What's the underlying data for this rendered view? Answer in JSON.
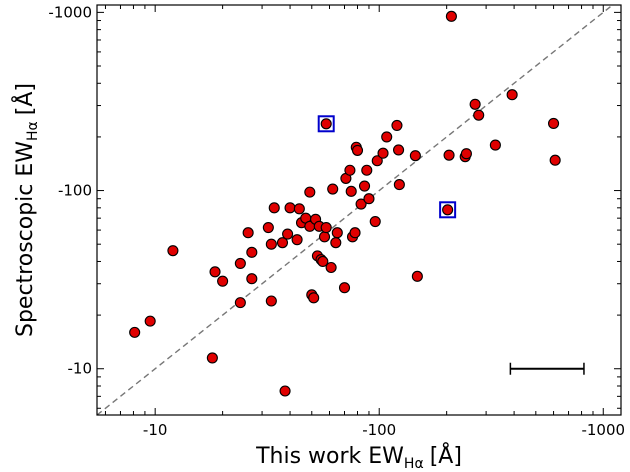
{
  "chart_data": {
    "type": "scatter",
    "xlabel": "This work EW",
    "ylabel": "Spectroscopic EW",
    "label_subscript": "Hα",
    "label_unit": "[Å]",
    "xscale": "log",
    "yscale": "log",
    "xlim": [
      -5.5,
      -1200
    ],
    "ylim": [
      -5.5,
      -1100
    ],
    "xticks": [
      -10,
      -100,
      -1000
    ],
    "xtick_labels": [
      "-10",
      "-100",
      "-1000"
    ],
    "yticks": [
      -10,
      -100,
      -1000
    ],
    "ytick_labels": [
      "-10",
      "-100",
      "-1000"
    ],
    "grid": false,
    "one_to_one_line": true,
    "colors": {
      "marker": "#e00000",
      "marker_edge": "#000000",
      "highlight_box": "#0000cc",
      "reference_line": "#777777"
    },
    "error_bar": {
      "x_range": [
        -385,
        -820
      ],
      "y": -10
    },
    "points": [
      {
        "x": -210,
        "y": -950
      },
      {
        "x": -8.1,
        "y": -16
      },
      {
        "x": -9.5,
        "y": -18.5
      },
      {
        "x": -12,
        "y": -46
      },
      {
        "x": -18,
        "y": -11.5
      },
      {
        "x": -18.5,
        "y": -35
      },
      {
        "x": -20,
        "y": -31
      },
      {
        "x": -24,
        "y": -39
      },
      {
        "x": -24,
        "y": -23.5
      },
      {
        "x": -26,
        "y": -58
      },
      {
        "x": -27,
        "y": -45
      },
      {
        "x": -27,
        "y": -32
      },
      {
        "x": -32,
        "y": -62
      },
      {
        "x": -33,
        "y": -50
      },
      {
        "x": -33,
        "y": -24
      },
      {
        "x": -34,
        "y": -80
      },
      {
        "x": -37,
        "y": -51
      },
      {
        "x": -38,
        "y": -7.5
      },
      {
        "x": -39,
        "y": -57
      },
      {
        "x": -40,
        "y": -80
      },
      {
        "x": -43,
        "y": -53
      },
      {
        "x": -44,
        "y": -79
      },
      {
        "x": -45,
        "y": -66
      },
      {
        "x": -47,
        "y": -70
      },
      {
        "x": -49,
        "y": -98
      },
      {
        "x": -49,
        "y": -63
      },
      {
        "x": -50,
        "y": -26
      },
      {
        "x": -51,
        "y": -25
      },
      {
        "x": -52,
        "y": -69
      },
      {
        "x": -53,
        "y": -43
      },
      {
        "x": -54,
        "y": -63
      },
      {
        "x": -55,
        "y": -41
      },
      {
        "x": -56,
        "y": -40
      },
      {
        "x": -57,
        "y": -55
      },
      {
        "x": -58,
        "y": -62
      },
      {
        "x": -61,
        "y": -37
      },
      {
        "x": -62,
        "y": -102
      },
      {
        "x": -64,
        "y": -51
      },
      {
        "x": -65,
        "y": -58
      },
      {
        "x": -70,
        "y": -28.5
      },
      {
        "x": -71,
        "y": -117
      },
      {
        "x": -74,
        "y": -130
      },
      {
        "x": -75,
        "y": -99
      },
      {
        "x": -76,
        "y": -55
      },
      {
        "x": -78,
        "y": -58
      },
      {
        "x": -79,
        "y": -175
      },
      {
        "x": -80,
        "y": -168
      },
      {
        "x": -83,
        "y": -84
      },
      {
        "x": -86,
        "y": -106
      },
      {
        "x": -88,
        "y": -130
      },
      {
        "x": -90,
        "y": -90
      },
      {
        "x": -96,
        "y": -67
      },
      {
        "x": -98,
        "y": -147
      },
      {
        "x": -104,
        "y": -162
      },
      {
        "x": -108,
        "y": -200
      },
      {
        "x": -120,
        "y": -232
      },
      {
        "x": -122,
        "y": -169
      },
      {
        "x": -123,
        "y": -108
      },
      {
        "x": -145,
        "y": -157
      },
      {
        "x": -148,
        "y": -33
      },
      {
        "x": -205,
        "y": -158
      },
      {
        "x": -242,
        "y": -155
      },
      {
        "x": -245,
        "y": -161
      },
      {
        "x": -268,
        "y": -305
      },
      {
        "x": -278,
        "y": -265
      },
      {
        "x": -330,
        "y": -180
      },
      {
        "x": -392,
        "y": -345
      },
      {
        "x": -600,
        "y": -238
      },
      {
        "x": -610,
        "y": -148
      }
    ],
    "highlighted_points": [
      {
        "x": -58,
        "y": -237
      },
      {
        "x": -202,
        "y": -78
      }
    ]
  }
}
